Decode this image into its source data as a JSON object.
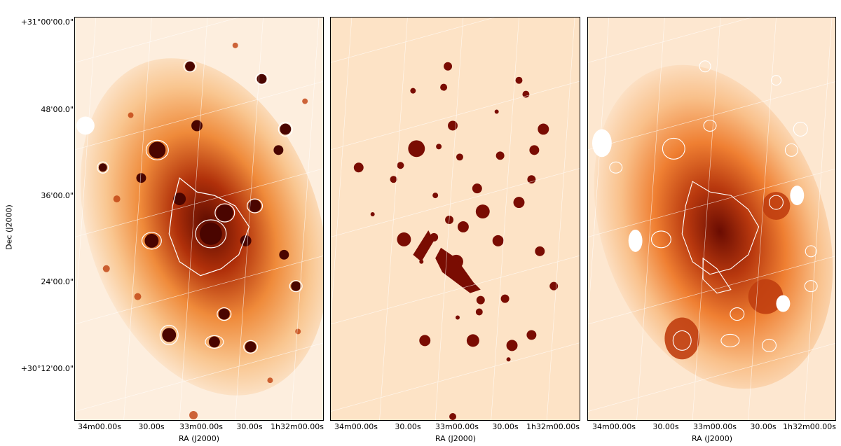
{
  "figure": {
    "y_axis": {
      "label": "Dec (J2000)",
      "ticks": [
        "+31°00'00.0\"",
        "48'00.0\"",
        "36'00.0\"",
        "24'00.0\"",
        "+30°12'00.0\""
      ]
    },
    "panels": [
      {
        "id": "panel-1",
        "x_axis_label": "RA (J2000)",
        "x_ticks": [
          "34m00.00s",
          "30.00s",
          "33m00.00s",
          "30.00s",
          "1h32m00.00s"
        ]
      },
      {
        "id": "panel-2",
        "x_axis_label": "RA (J2000)",
        "x_ticks": [
          "34m00.00s",
          "30.00s",
          "33m00.00s",
          "30.00s",
          "1h32m00.00s"
        ]
      },
      {
        "id": "panel-3",
        "x_axis_label": "RA (J2000)",
        "x_ticks": [
          "34m00.00s",
          "30.00s",
          "33m00.00s",
          "30.00s",
          "1h32m00.00s"
        ]
      }
    ],
    "colors": {
      "background_light": "#fde3c6",
      "mid_orange": "#f08a3c",
      "dark_red": "#7a0c02",
      "grid": "#ffffff"
    }
  }
}
